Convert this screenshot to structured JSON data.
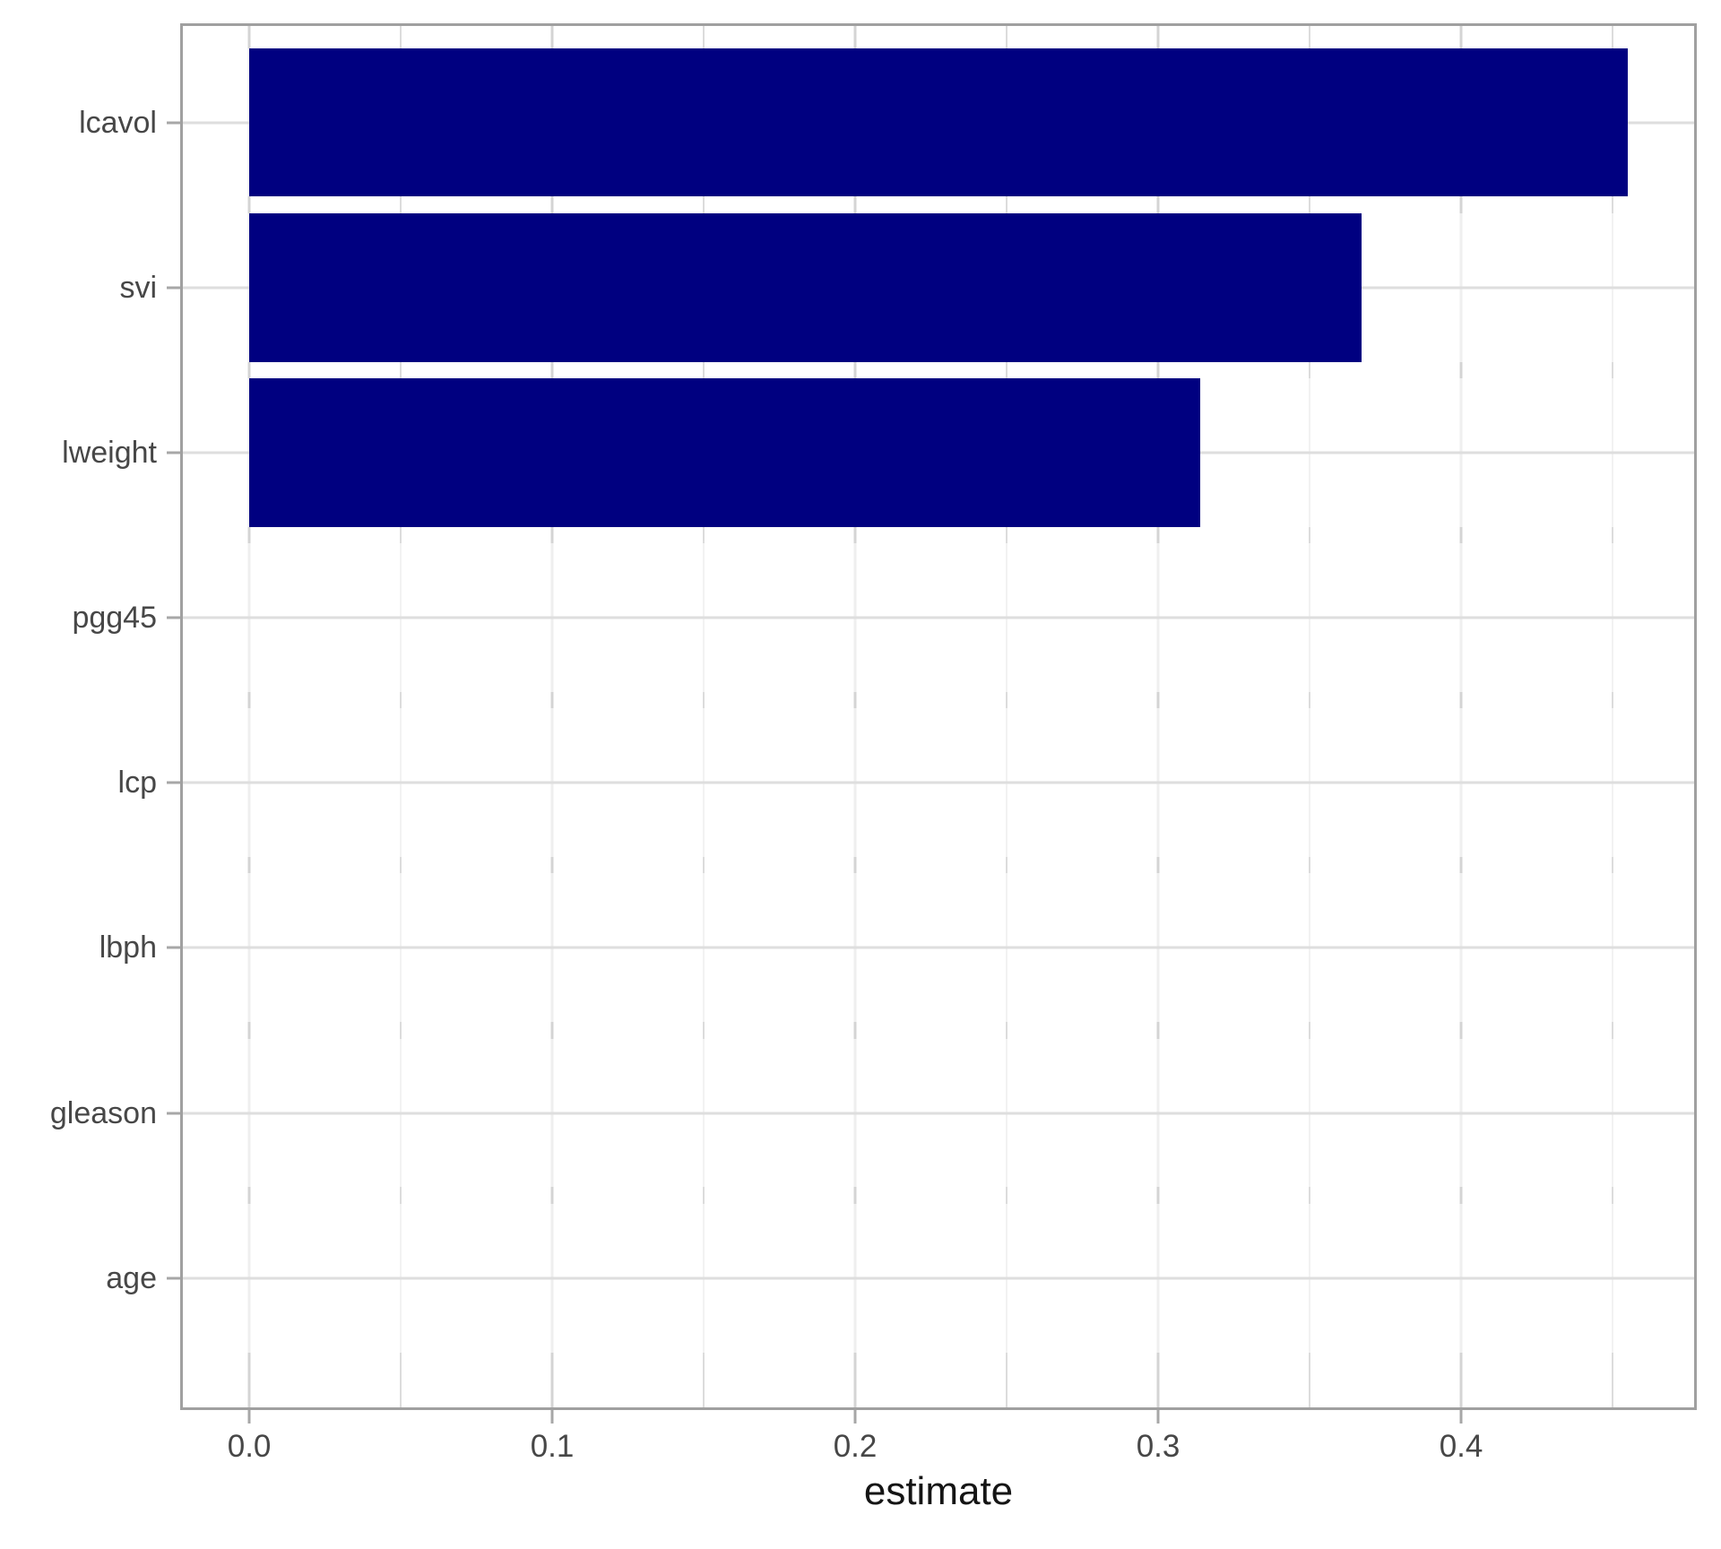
{
  "figure": {
    "background_color": "#ffffff",
    "panel_border_color": "#a0a0a0",
    "tick_mark_color": "#a7a7a7",
    "grid_major_color": "#d4d4d4",
    "grid_minor_color": "#dcdcdc",
    "grid_horizontal_color": "#dedede",
    "row_band_overlay_color": "rgba(255,255,255,0.62)",
    "tick_label_color": "#474747",
    "axis_title_color": "#151515"
  },
  "chart_data": {
    "type": "bar",
    "orientation": "horizontal",
    "title": "",
    "xlabel": "estimate",
    "ylabel": "",
    "categories": [
      "lcavol",
      "svi",
      "lweight",
      "pgg45",
      "lcp",
      "lbph",
      "gleason",
      "age"
    ],
    "values": [
      0.455,
      0.367,
      0.314,
      0,
      0,
      0,
      0,
      0
    ],
    "bar_color": "#000080",
    "xlim": [
      -0.0228,
      0.4778
    ],
    "x_major_ticks": [
      0.0,
      0.1,
      0.2,
      0.3,
      0.4
    ],
    "x_major_tick_labels": [
      "0.0",
      "0.1",
      "0.2",
      "0.3",
      "0.4"
    ],
    "x_minor_ticks": [
      0.05,
      0.15,
      0.25,
      0.35,
      0.45
    ],
    "bar_rel_width": 0.9,
    "y_axis_expansion": 0.6,
    "grid": "major+minor",
    "legend": "none"
  }
}
